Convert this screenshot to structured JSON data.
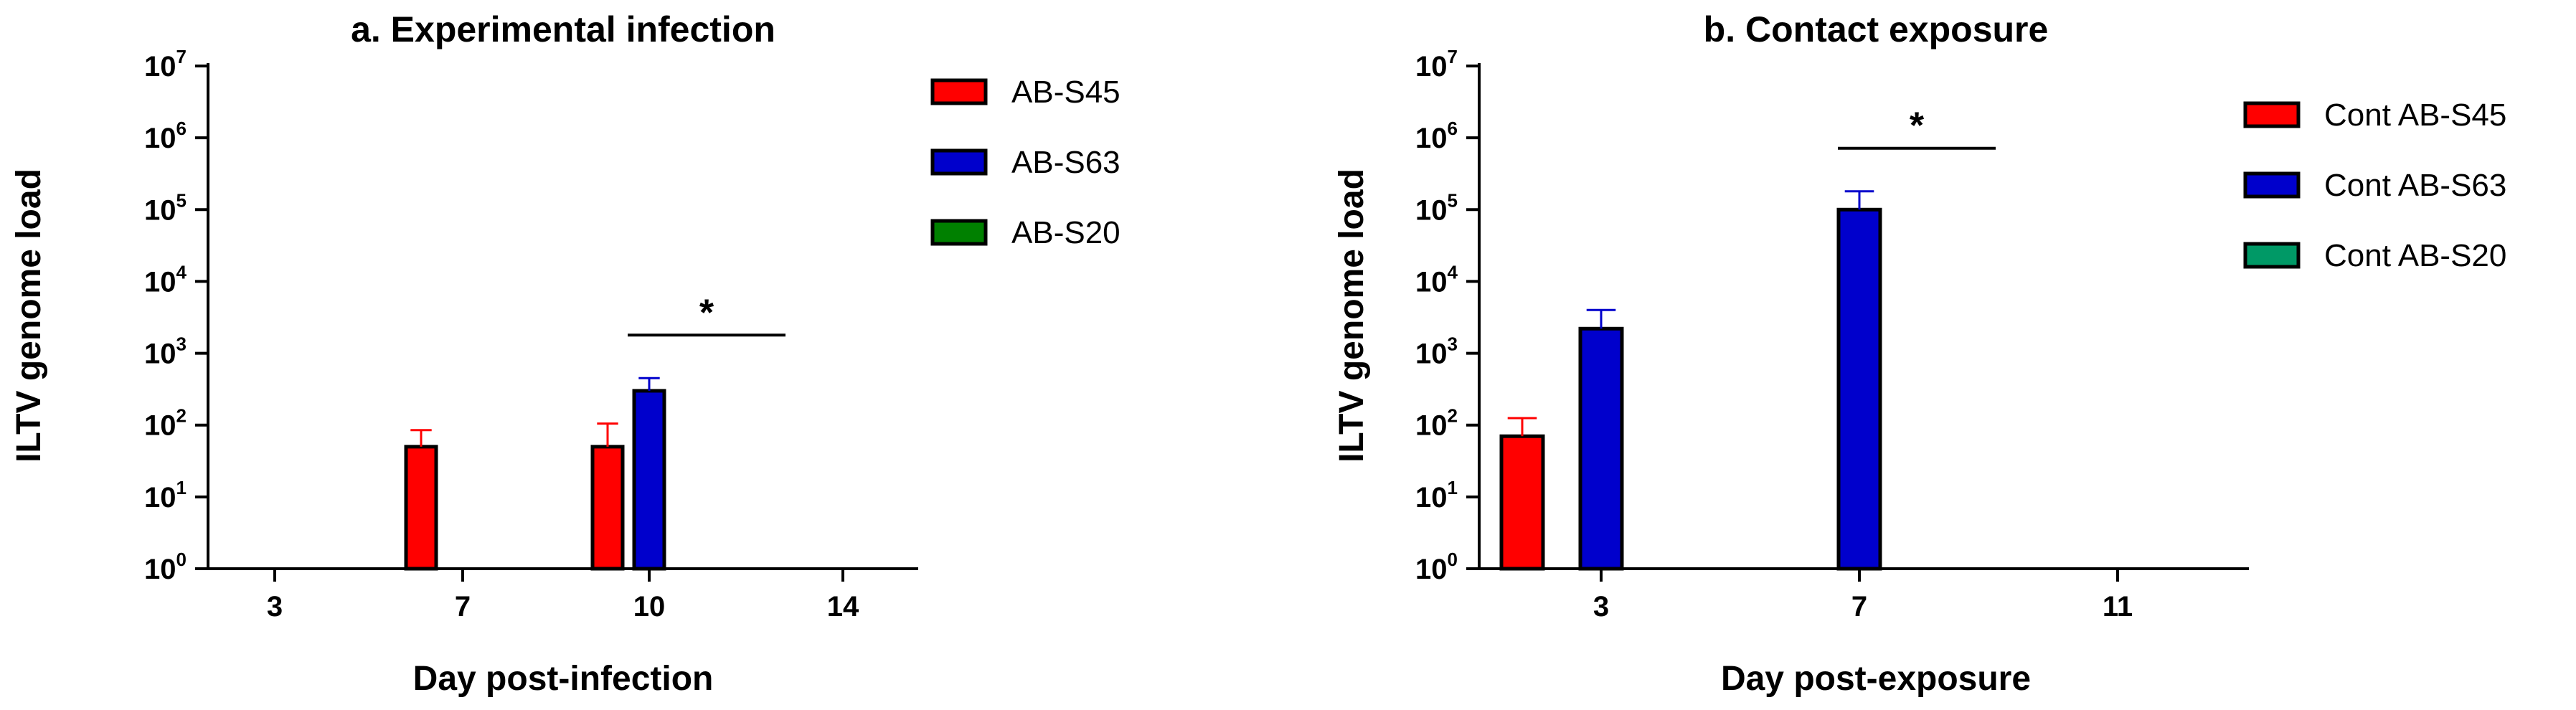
{
  "chart_data": [
    {
      "type": "bar",
      "title": "a. Experimental infection",
      "xlabel": "Day post-infection",
      "ylabel": "ILTV genome load",
      "yscale": "log",
      "ylim": [
        1,
        10000000
      ],
      "categories": [
        "3",
        "7",
        "10",
        "14"
      ],
      "series": [
        {
          "name": "AB-S45",
          "color": "#ff0000",
          "values": [
            1,
            50,
            50,
            1
          ],
          "errors": [
            0,
            35,
            55,
            0
          ]
        },
        {
          "name": "AB-S63",
          "color": "#0000cc",
          "values": [
            1,
            1,
            300,
            1
          ],
          "errors": [
            0,
            0,
            150,
            0
          ]
        },
        {
          "name": "AB-S20",
          "color": "#008000",
          "values": [
            1,
            1,
            1,
            1
          ],
          "errors": [
            0,
            0,
            0,
            0
          ]
        }
      ],
      "significance": [
        {
          "label": "*",
          "category": "10"
        }
      ],
      "legend": "right"
    },
    {
      "type": "bar",
      "title": "b. Contact exposure",
      "xlabel": "Day post-exposure",
      "ylabel": "ILTV genome load",
      "yscale": "log",
      "ylim": [
        1,
        10000000
      ],
      "categories": [
        "3",
        "7",
        "11"
      ],
      "series": [
        {
          "name": "Cont AB-S45",
          "color": "#ff0000",
          "values": [
            70,
            1,
            1
          ],
          "errors": [
            55,
            0,
            0
          ]
        },
        {
          "name": "Cont AB-S63",
          "color": "#0000cc",
          "values": [
            2200,
            100000,
            1
          ],
          "errors": [
            1800,
            80000,
            0
          ]
        },
        {
          "name": "Cont AB-S20",
          "color": "#009966",
          "values": [
            1,
            1,
            1
          ],
          "errors": [
            0,
            0,
            0
          ]
        }
      ],
      "significance": [
        {
          "label": "*",
          "category": "7"
        }
      ],
      "legend": "right"
    }
  ]
}
